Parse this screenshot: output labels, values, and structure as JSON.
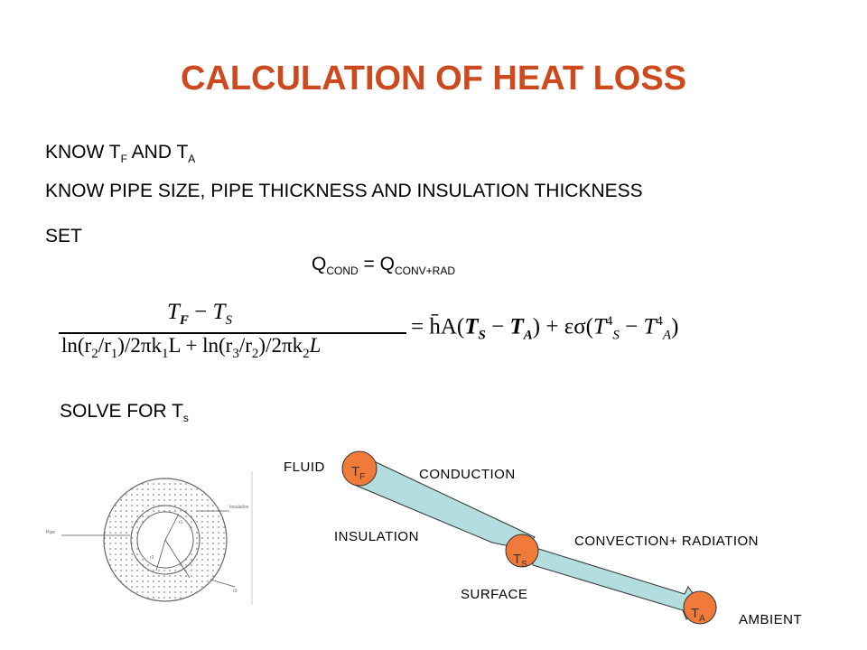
{
  "title": "CALCULATION OF HEAT LOSS",
  "line1": {
    "prefix": "KNOW T",
    "sub1": "F",
    "mid": " AND T",
    "sub2": "A"
  },
  "line2": "KNOW PIPE SIZE, PIPE THICKNESS AND INSULATION THICKNESS",
  "line3": "SET",
  "balance": {
    "q1": "Q",
    "sub1": "COND",
    "eq": " = Q",
    "sub2": "CONV+RAD"
  },
  "equation": {
    "num_tf": "T",
    "num_tf_sub": "F",
    "num_minus": " − ",
    "num_ts": "T",
    "num_ts_sub": "S",
    "den1": "ln(r",
    "den2": "2",
    "den3": "/r",
    "den4": "1",
    "den5": ")/2πk",
    "den6": "1",
    "den7": "L + ln(r",
    "den8": "3",
    "den9": "/r",
    "den10": "2",
    "den11": ")/2πk",
    "den12": "2",
    "den13": "L",
    "rhs1": "= h̄A(",
    "rhs_ts": "T",
    "rhs_ts_sub": "S",
    "rhs_minus": " − ",
    "rhs_ta": "T",
    "rhs_ta_sub": "A",
    "rhs2": ") + εσ(",
    "rhs_t4a": "T",
    "rhs_t4a_sup": "4",
    "rhs_t4a_sub": "S",
    "rhs_minus2": " − ",
    "rhs_t4b": "T",
    "rhs_t4b_sup": "4",
    "rhs_t4b_sub": "A",
    "rhs3": ")"
  },
  "solve": {
    "prefix": "SOLVE FOR T",
    "sub": "s"
  },
  "network": {
    "fluid": "FLUID",
    "conduction": "CONDUCTION",
    "insulation": "INSULATION",
    "convection": "CONVECTION+ RADIATION",
    "surface": "SURFACE",
    "ambient": "AMBIENT",
    "node_f": {
      "t": "T",
      "sub": "F"
    },
    "node_s": {
      "t": "T",
      "sub": "S"
    },
    "node_a": {
      "t": "T",
      "sub": "A"
    },
    "node_color": "#f07a3a",
    "arrow_color": "#b4dde0"
  },
  "pipe_figure": {
    "pipe_label": "Pipe",
    "insulation_label": "Insulation",
    "r1": "r1",
    "r2": "r2",
    "r3": "r3"
  }
}
